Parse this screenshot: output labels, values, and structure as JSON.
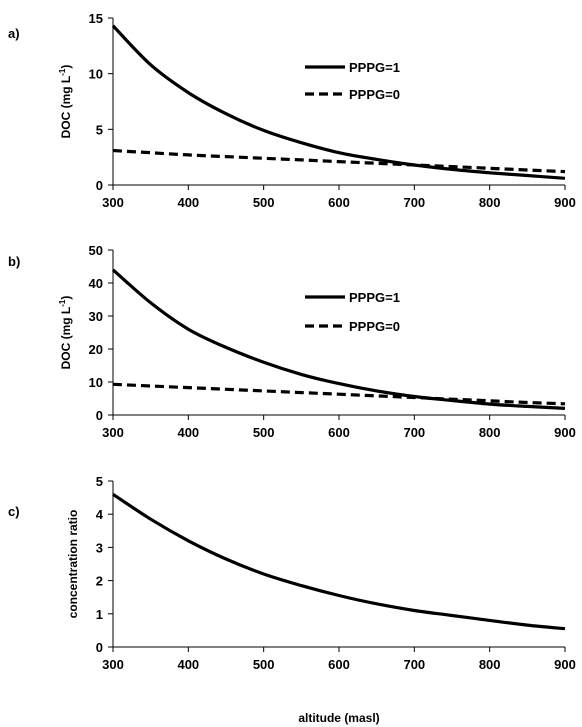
{
  "chart_data": [
    {
      "panel_label": "a)",
      "type": "line",
      "ylabel": "DOC (mg L",
      "ylabel_sup": "-1",
      "ylabel_end": ")",
      "xlabel": "",
      "xlim": [
        300,
        900
      ],
      "ylim": [
        0,
        15
      ],
      "x_ticks": [
        "300",
        "400",
        "500",
        "600",
        "700",
        "800",
        "900"
      ],
      "y_ticks": [
        "0",
        "5",
        "10",
        "15"
      ],
      "legend": "inside-top-right",
      "grid": false,
      "series": [
        {
          "name": "PPPG=1",
          "style": "solid",
          "x": [
            300,
            350,
            400,
            450,
            500,
            550,
            600,
            650,
            700,
            750,
            800,
            850,
            900
          ],
          "y": [
            14.3,
            10.8,
            8.3,
            6.4,
            4.9,
            3.8,
            2.9,
            2.3,
            1.8,
            1.4,
            1.1,
            0.85,
            0.6
          ]
        },
        {
          "name": "PPPG=0",
          "style": "dashed",
          "x": [
            300,
            350,
            400,
            450,
            500,
            550,
            600,
            650,
            700,
            750,
            800,
            850,
            900
          ],
          "y": [
            3.1,
            2.9,
            2.7,
            2.55,
            2.4,
            2.25,
            2.1,
            1.95,
            1.8,
            1.65,
            1.5,
            1.35,
            1.2
          ]
        }
      ]
    },
    {
      "panel_label": "b)",
      "type": "line",
      "ylabel": "DOC (mg L",
      "ylabel_sup": "-1",
      "ylabel_end": ")",
      "xlabel": "",
      "xlim": [
        300,
        900
      ],
      "ylim": [
        0,
        50
      ],
      "x_ticks": [
        "300",
        "400",
        "500",
        "600",
        "700",
        "800",
        "900"
      ],
      "y_ticks": [
        "0",
        "10",
        "20",
        "30",
        "40",
        "50"
      ],
      "legend": "inside-top-right",
      "grid": false,
      "series": [
        {
          "name": "PPPG=1",
          "style": "solid",
          "x": [
            300,
            350,
            400,
            450,
            500,
            550,
            600,
            650,
            700,
            750,
            800,
            850,
            900
          ],
          "y": [
            44,
            34,
            26,
            20.5,
            16,
            12.3,
            9.5,
            7.3,
            5.6,
            4.4,
            3.3,
            2.6,
            2
          ]
        },
        {
          "name": "PPPG=0",
          "style": "dashed",
          "x": [
            300,
            350,
            400,
            450,
            500,
            550,
            600,
            650,
            700,
            750,
            800,
            850,
            900
          ],
          "y": [
            9.3,
            8.8,
            8.3,
            7.8,
            7.3,
            6.8,
            6.3,
            5.8,
            5.3,
            4.8,
            4.3,
            3.8,
            3.4
          ]
        }
      ]
    },
    {
      "panel_label": "c)",
      "type": "line",
      "ylabel": "concentration ratio",
      "xlabel": "altitude (masl)",
      "xlim": [
        300,
        900
      ],
      "ylim": [
        0,
        5
      ],
      "x_ticks": [
        "300",
        "400",
        "500",
        "600",
        "700",
        "800",
        "900"
      ],
      "y_ticks": [
        "0",
        "1",
        "2",
        "3",
        "4",
        "5"
      ],
      "legend": "none",
      "grid": false,
      "series": [
        {
          "style": "solid",
          "x": [
            300,
            350,
            400,
            450,
            500,
            550,
            600,
            650,
            700,
            750,
            800,
            850,
            900
          ],
          "y": [
            4.6,
            3.85,
            3.2,
            2.65,
            2.2,
            1.85,
            1.55,
            1.3,
            1.1,
            0.95,
            0.8,
            0.66,
            0.55
          ]
        }
      ]
    }
  ]
}
